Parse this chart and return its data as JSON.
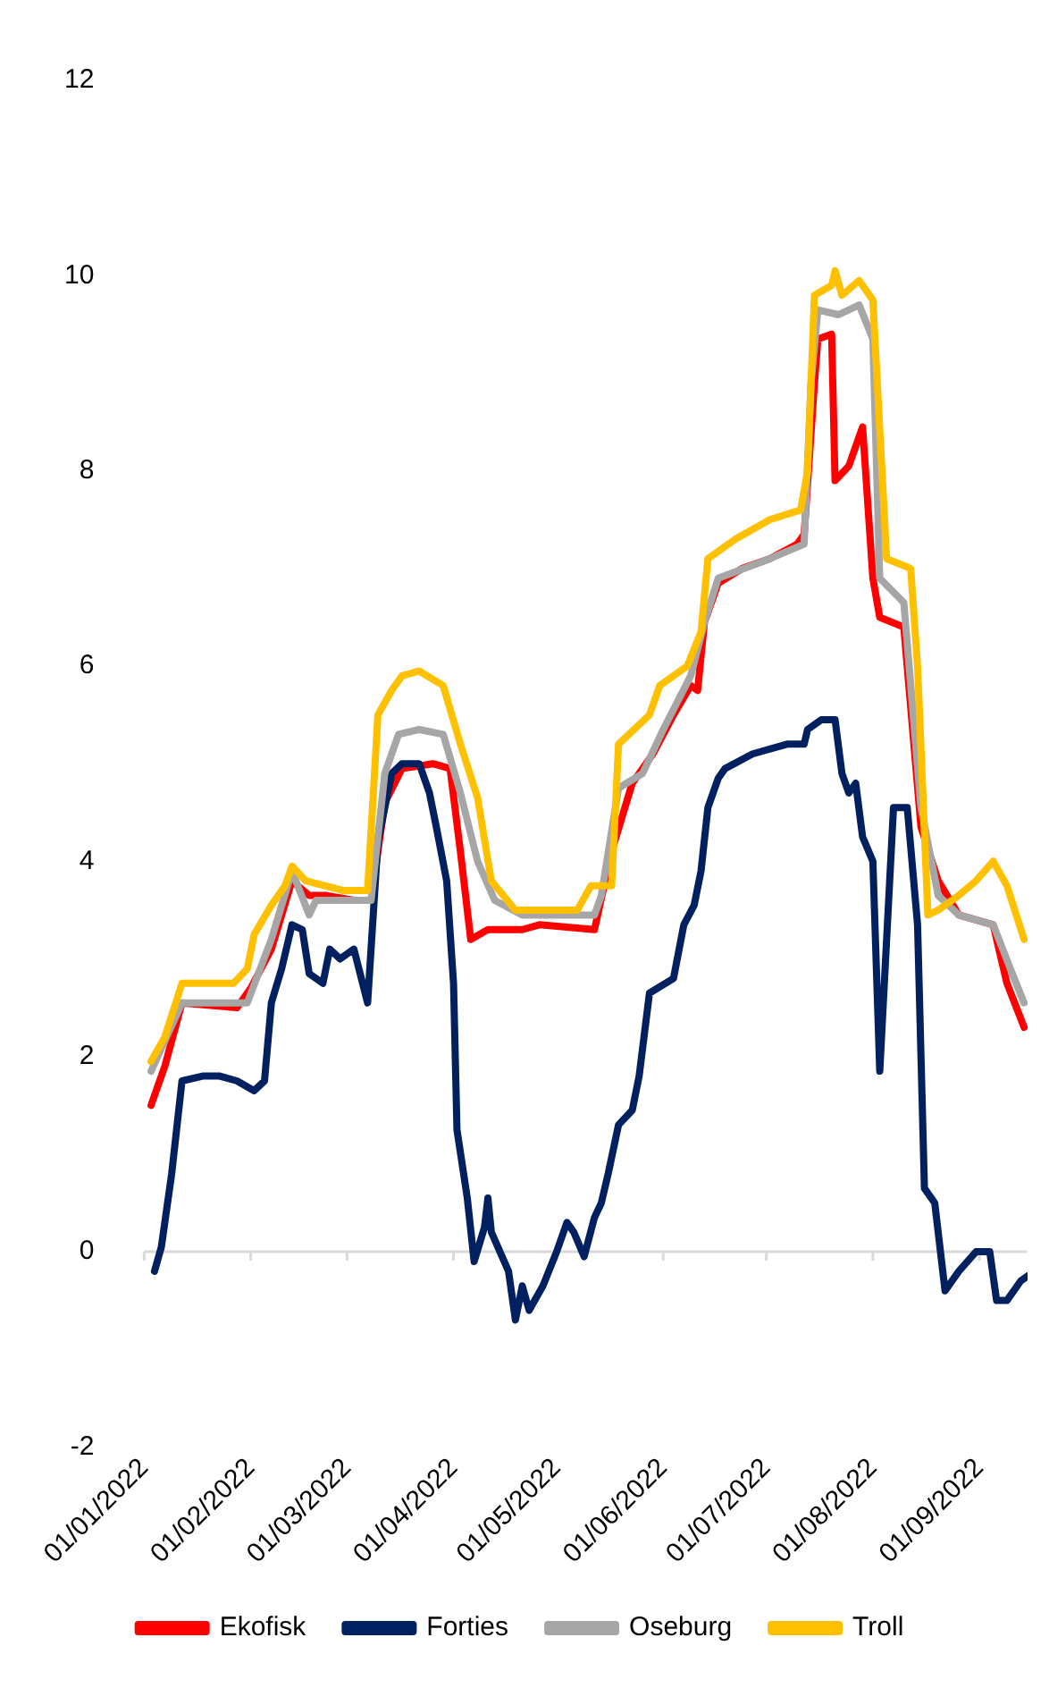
{
  "chart_data": {
    "type": "line",
    "legend": "bottom",
    "grid": false,
    "marker": "none",
    "line_style": "solid",
    "ref_lines": [
      {
        "axis": "y",
        "value": 0,
        "color": "#d9d9d9"
      }
    ],
    "ylim": [
      -2,
      12
    ],
    "yticks": [
      -2,
      0,
      2,
      4,
      6,
      8,
      10,
      12
    ],
    "xlim": [
      "2022-01-01",
      "2022-09-15"
    ],
    "xticks": [
      {
        "value": "2022-01-01",
        "label": "01/01/2022"
      },
      {
        "value": "2022-02-01",
        "label": "01/02/2022"
      },
      {
        "value": "2022-03-01",
        "label": "01/03/2022"
      },
      {
        "value": "2022-04-01",
        "label": "01/04/2022"
      },
      {
        "value": "2022-05-01",
        "label": "01/05/2022"
      },
      {
        "value": "2022-06-01",
        "label": "01/06/2022"
      },
      {
        "value": "2022-07-01",
        "label": "01/07/2022"
      },
      {
        "value": "2022-08-01",
        "label": "01/08/2022"
      },
      {
        "value": "2022-09-01",
        "label": "01/09/2022"
      }
    ],
    "series": [
      {
        "name": "Ekofisk",
        "color": "#ff0000",
        "x": [
          "2022-01-03",
          "2022-01-07",
          "2022-01-12",
          "2022-01-28",
          "2022-02-01",
          "2022-02-07",
          "2022-02-13",
          "2022-02-18",
          "2022-02-23",
          "2022-03-03",
          "2022-03-08",
          "2022-03-12",
          "2022-03-17",
          "2022-03-26",
          "2022-03-31",
          "2022-04-03",
          "2022-04-06",
          "2022-04-11",
          "2022-04-21",
          "2022-04-26",
          "2022-05-12",
          "2022-05-17",
          "2022-05-23",
          "2022-05-29",
          "2022-06-04",
          "2022-06-09",
          "2022-06-11",
          "2022-06-13",
          "2022-06-17",
          "2022-06-24",
          "2022-07-02",
          "2022-07-10",
          "2022-07-12",
          "2022-07-15",
          "2022-07-16",
          "2022-07-20",
          "2022-07-21",
          "2022-07-25",
          "2022-07-29",
          "2022-08-01",
          "2022-08-03",
          "2022-08-10",
          "2022-08-15",
          "2022-08-20",
          "2022-08-26",
          "2022-09-05",
          "2022-09-09",
          "2022-09-14"
        ],
        "values": [
          1.5,
          1.9,
          2.55,
          2.5,
          2.7,
          3.1,
          3.8,
          3.65,
          3.65,
          3.6,
          3.6,
          4.6,
          4.95,
          5.0,
          4.95,
          4.1,
          3.2,
          3.3,
          3.3,
          3.35,
          3.3,
          4.1,
          4.8,
          5.1,
          5.5,
          5.8,
          5.75,
          6.45,
          6.85,
          7.0,
          7.1,
          7.25,
          7.35,
          8.9,
          9.35,
          9.4,
          7.9,
          8.05,
          8.45,
          6.9,
          6.5,
          6.4,
          4.35,
          3.8,
          3.45,
          3.35,
          2.75,
          2.3
        ]
      },
      {
        "name": "Forties",
        "color": "#002060",
        "x": [
          "2022-01-04",
          "2022-01-06",
          "2022-01-09",
          "2022-01-12",
          "2022-01-18",
          "2022-01-23",
          "2022-01-28",
          "2022-02-02",
          "2022-02-05",
          "2022-02-07",
          "2022-02-10",
          "2022-02-13",
          "2022-02-16",
          "2022-02-18",
          "2022-02-22",
          "2022-02-24",
          "2022-02-27",
          "2022-03-03",
          "2022-03-07",
          "2022-03-10",
          "2022-03-14",
          "2022-03-17",
          "2022-03-22",
          "2022-03-25",
          "2022-03-27",
          "2022-03-30",
          "2022-04-01",
          "2022-04-02",
          "2022-04-05",
          "2022-04-07",
          "2022-04-10",
          "2022-04-11",
          "2022-04-12",
          "2022-04-17",
          "2022-04-19",
          "2022-04-21",
          "2022-04-23",
          "2022-04-27",
          "2022-05-01",
          "2022-05-04",
          "2022-05-06",
          "2022-05-09",
          "2022-05-12",
          "2022-05-14",
          "2022-05-16",
          "2022-05-19",
          "2022-05-23",
          "2022-05-25",
          "2022-05-28",
          "2022-06-04",
          "2022-06-07",
          "2022-06-10",
          "2022-06-12",
          "2022-06-14",
          "2022-06-17",
          "2022-06-19",
          "2022-06-27",
          "2022-07-07",
          "2022-07-12",
          "2022-07-13",
          "2022-07-17",
          "2022-07-21",
          "2022-07-23",
          "2022-07-25",
          "2022-07-27",
          "2022-07-29",
          "2022-08-01",
          "2022-08-03",
          "2022-08-07",
          "2022-08-11",
          "2022-08-14",
          "2022-08-16",
          "2022-08-19",
          "2022-08-22",
          "2022-08-26",
          "2022-08-31",
          "2022-09-04",
          "2022-09-06",
          "2022-09-09",
          "2022-09-13",
          "2022-09-15"
        ],
        "values": [
          -0.2,
          0.05,
          0.8,
          1.75,
          1.8,
          1.8,
          1.75,
          1.65,
          1.75,
          2.55,
          2.9,
          3.35,
          3.3,
          2.85,
          2.75,
          3.1,
          3.0,
          3.1,
          2.55,
          4.2,
          4.9,
          5.0,
          5.0,
          4.7,
          4.35,
          3.8,
          2.75,
          1.25,
          0.55,
          -0.1,
          0.25,
          0.55,
          0.2,
          -0.2,
          -0.7,
          -0.35,
          -0.6,
          -0.35,
          0,
          0.3,
          0.2,
          -0.05,
          0.35,
          0.5,
          0.8,
          1.3,
          1.45,
          1.8,
          2.65,
          2.8,
          3.35,
          3.55,
          3.9,
          4.55,
          4.85,
          4.95,
          5.1,
          5.2,
          5.2,
          5.35,
          5.45,
          5.45,
          4.9,
          4.7,
          4.8,
          4.25,
          4.0,
          1.85,
          4.55,
          4.55,
          3.35,
          0.65,
          0.5,
          -0.4,
          -0.2,
          0,
          0,
          -0.5,
          -0.5,
          -0.3,
          -0.25
        ]
      },
      {
        "name": "Oseburg",
        "color": "#a6a6a6",
        "x": [
          "2022-01-03",
          "2022-01-12",
          "2022-01-31",
          "2022-02-07",
          "2022-02-13",
          "2022-02-18",
          "2022-02-20",
          "2022-03-08",
          "2022-03-12",
          "2022-03-16",
          "2022-03-22",
          "2022-03-29",
          "2022-04-03",
          "2022-04-08",
          "2022-04-13",
          "2022-04-21",
          "2022-05-12",
          "2022-05-14",
          "2022-05-19",
          "2022-05-26",
          "2022-06-01",
          "2022-06-09",
          "2022-06-13",
          "2022-06-17",
          "2022-07-02",
          "2022-07-12",
          "2022-07-14",
          "2022-07-16",
          "2022-07-22",
          "2022-07-28",
          "2022-08-01",
          "2022-08-03",
          "2022-08-10",
          "2022-08-15",
          "2022-08-20",
          "2022-08-26",
          "2022-09-05",
          "2022-09-10",
          "2022-09-14"
        ],
        "values": [
          1.85,
          2.55,
          2.55,
          3.2,
          3.9,
          3.45,
          3.6,
          3.6,
          4.9,
          5.3,
          5.35,
          5.3,
          4.7,
          4.0,
          3.6,
          3.45,
          3.45,
          3.65,
          4.75,
          4.9,
          5.35,
          5.9,
          6.45,
          6.9,
          7.1,
          7.25,
          8.9,
          9.65,
          9.6,
          9.7,
          9.35,
          6.9,
          6.65,
          4.55,
          3.65,
          3.45,
          3.35,
          2.9,
          2.55
        ]
      },
      {
        "name": "Troll",
        "color": "#ffc000",
        "x": [
          "2022-01-03",
          "2022-01-07",
          "2022-01-12",
          "2022-01-27",
          "2022-01-31",
          "2022-02-02",
          "2022-02-07",
          "2022-02-11",
          "2022-02-13",
          "2022-02-17",
          "2022-02-28",
          "2022-03-07",
          "2022-03-10",
          "2022-03-14",
          "2022-03-17",
          "2022-03-22",
          "2022-03-29",
          "2022-04-03",
          "2022-04-08",
          "2022-04-12",
          "2022-04-19",
          "2022-05-07",
          "2022-05-11",
          "2022-05-17",
          "2022-05-19",
          "2022-05-28",
          "2022-05-31",
          "2022-06-08",
          "2022-06-12",
          "2022-06-14",
          "2022-06-22",
          "2022-07-02",
          "2022-07-11",
          "2022-07-13",
          "2022-07-15",
          "2022-07-20",
          "2022-07-21",
          "2022-07-23",
          "2022-07-28",
          "2022-08-01",
          "2022-08-05",
          "2022-08-12",
          "2022-08-14",
          "2022-08-17",
          "2022-08-20",
          "2022-08-26",
          "2022-08-31",
          "2022-09-05",
          "2022-09-09",
          "2022-09-14"
        ],
        "values": [
          1.95,
          2.2,
          2.75,
          2.75,
          2.9,
          3.25,
          3.55,
          3.75,
          3.95,
          3.8,
          3.7,
          3.7,
          5.5,
          5.75,
          5.9,
          5.95,
          5.8,
          5.2,
          4.65,
          3.8,
          3.5,
          3.5,
          3.75,
          3.75,
          5.2,
          5.5,
          5.8,
          6.0,
          6.35,
          7.1,
          7.3,
          7.5,
          7.6,
          8.0,
          9.8,
          9.9,
          10.05,
          9.8,
          9.95,
          9.75,
          7.1,
          7.0,
          6.0,
          3.45,
          3.5,
          3.65,
          3.8,
          4.0,
          3.75,
          3.2
        ]
      }
    ]
  }
}
